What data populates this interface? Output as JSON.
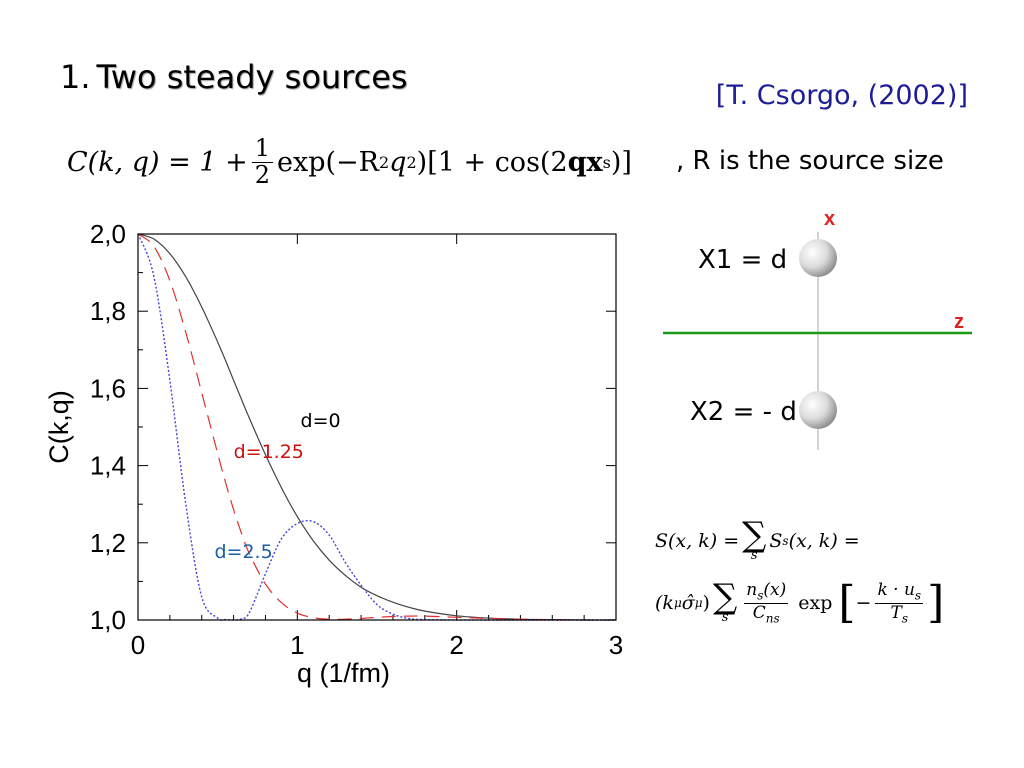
{
  "slide": {
    "title_number": "1.",
    "title_text": "Two steady sources",
    "citation": "[T. Csorgo, (2002)]",
    "formula_comment": ", R is the source size"
  },
  "formula": {
    "lhs": "C(k, q) = 1 +",
    "frac_num": "1",
    "frac_den": "2",
    "rhs_exp": "exp(−R",
    "rhs_mid": "q",
    "rhs_tail": ")[1 + cos(2",
    "rhs_bold_q": "q",
    "rhs_bold_x": "x",
    "rhs_sub": "s",
    "rhs_end": ")]",
    "sq": "2"
  },
  "diagram": {
    "x_axis_label": "x",
    "z_axis_label": "z",
    "source1_label": "X1 = d",
    "source2_label": "X2 = - d",
    "axis_x_color": "#e02020",
    "axis_z_color": "#1a9a1a"
  },
  "source_eq": {
    "line1_lhs": "S(x, k) =",
    "sum_sym": "∑",
    "sum_sub": "s",
    "line1_mid": "S",
    "line1_mid_sub": "s",
    "line1_rhs": "(x, k) =",
    "line2_lhs": "(k",
    "line2_sup": "μ",
    "line2_sigma": "σ̂",
    "line2_sigma_sub": "μ",
    "line2_close": ")",
    "frac_num": "n",
    "frac_num_sub": "s",
    "frac_num_tail": "(x)",
    "frac_den": "C",
    "frac_den_sub": "ns",
    "exp_word": "exp",
    "bracket_open": "[",
    "bracket_close": "]",
    "exp_frac_num": "k · u",
    "exp_frac_num_sub": "s",
    "exp_frac_den": "T",
    "exp_frac_den_sub": "s",
    "minus": "−"
  },
  "chart_data": {
    "type": "line",
    "xlabel": "q  (1/fm)",
    "ylabel": "C(k,q)",
    "xlim": [
      0,
      3
    ],
    "ylim": [
      1.0,
      2.0
    ],
    "x_ticks": [
      "0",
      "1",
      "2",
      "3"
    ],
    "y_ticks": [
      "1,0",
      "1,2",
      "1,4",
      "1,6",
      "1,8",
      "2,0"
    ],
    "grid": false,
    "x": [
      0.0,
      0.1,
      0.2,
      0.3,
      0.4,
      0.5,
      0.55,
      0.6,
      0.65,
      0.7,
      0.8,
      0.9,
      1.0,
      1.1,
      1.2,
      1.3,
      1.4,
      1.5,
      1.6,
      1.7,
      1.8,
      2.0,
      2.2,
      2.4,
      2.6,
      2.8,
      3.0
    ],
    "series": [
      {
        "name": "d=0",
        "color": "#444444",
        "dash": "solid",
        "values": [
          2.0,
          1.987,
          1.949,
          1.889,
          1.811,
          1.72,
          1.672,
          1.621,
          1.571,
          1.522,
          1.428,
          1.343,
          1.268,
          1.205,
          1.155,
          1.116,
          1.085,
          1.063,
          1.046,
          1.033,
          1.023,
          1.011,
          1.005,
          1.002,
          1.001,
          1.0,
          1.0
        ]
      },
      {
        "name": "d=1.25",
        "color": "#e03030",
        "dash": "dashed",
        "values": [
          2.0,
          1.968,
          1.879,
          1.745,
          1.589,
          1.431,
          1.356,
          1.286,
          1.224,
          1.171,
          1.093,
          1.045,
          1.018,
          1.006,
          1.002,
          1.002,
          1.004,
          1.007,
          1.009,
          1.01,
          1.01,
          1.007,
          1.004,
          1.002,
          1.001,
          1.0,
          1.0
        ]
      },
      {
        "name": "d=2.5",
        "color": "#4444dd",
        "dash": "dotted",
        "values": [
          2.0,
          1.89,
          1.62,
          1.3,
          1.06,
          1.005,
          1.001,
          1.0,
          1.003,
          1.02,
          1.12,
          1.21,
          1.25,
          1.255,
          1.22,
          1.15,
          1.09,
          1.04,
          1.015,
          1.004,
          1.001,
          1.0,
          1.0,
          1.0,
          1.0,
          1.0,
          1.0
        ]
      }
    ],
    "annotations": [
      {
        "text": "d=0",
        "x": 1.02,
        "y": 1.5,
        "color": "#000000"
      },
      {
        "text": "d=1.25",
        "x": 0.6,
        "y": 1.42,
        "color": "#cc1111"
      },
      {
        "text": "d=2.5",
        "x": 0.48,
        "y": 1.16,
        "color": "#1a5ea8"
      }
    ]
  }
}
